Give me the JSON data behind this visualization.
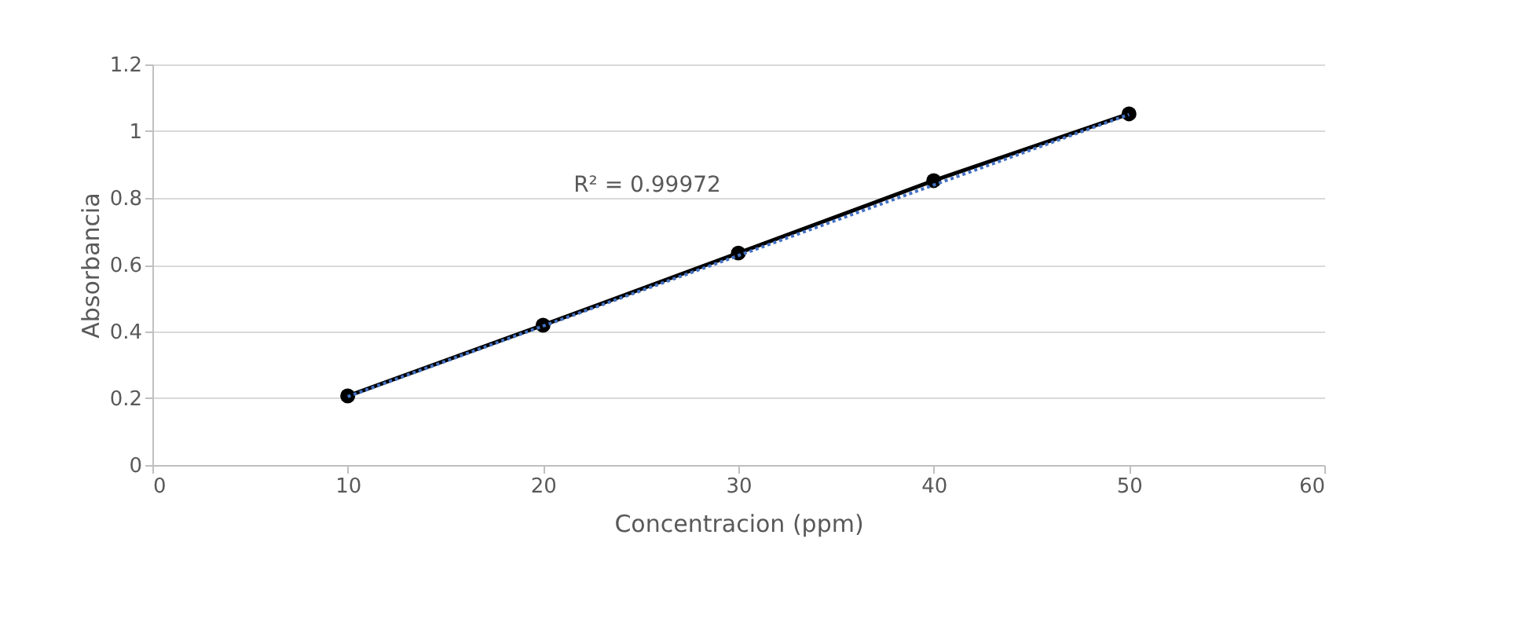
{
  "chart_data": {
    "type": "line",
    "xlabel": "Concentracion (ppm)",
    "ylabel": "Absorbancia",
    "x": [
      10,
      20,
      30,
      40,
      50
    ],
    "series": [
      {
        "color": "#000000",
        "values": [
          0.207,
          0.419,
          0.635,
          0.852,
          1.052
        ],
        "marker": "circle",
        "line_style": "solid"
      },
      {
        "type": "line",
        "color": "#4472c4",
        "x": [
          10,
          50
        ],
        "values": [
          0.205,
          1.05
        ],
        "marker": "none",
        "line_style": "dotted"
      }
    ],
    "annotations": [
      "R² = 0.99972"
    ],
    "xlim": [
      0,
      60
    ],
    "xticks": [
      0,
      10,
      20,
      30,
      40,
      50,
      60
    ],
    "ylim": [
      0,
      1.2
    ],
    "yticks": [
      0,
      0.2,
      0.4,
      0.6,
      0.8,
      1,
      1.2
    ],
    "grid": "y"
  }
}
